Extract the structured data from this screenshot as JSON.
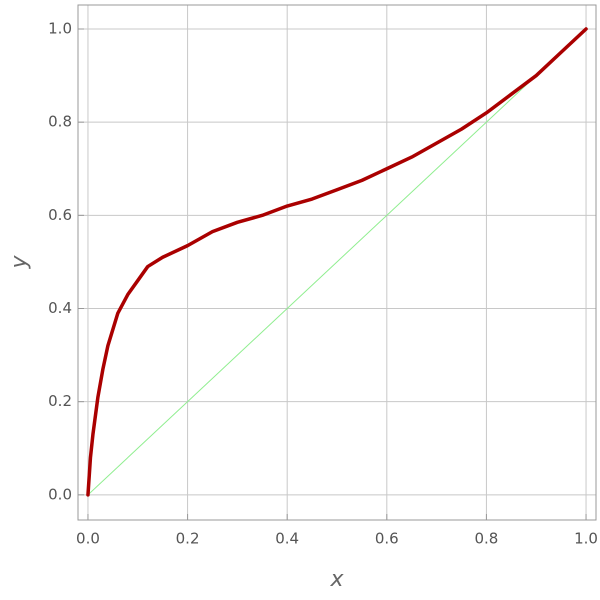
{
  "chart_data": {
    "type": "line",
    "x_label": "x",
    "y_label": "y",
    "series": [
      {
        "color": "#aa0000",
        "width": 3.5,
        "x": [
          0,
          0.005,
          0.01,
          0.02,
          0.03,
          0.04,
          0.06,
          0.08,
          0.1,
          0.12,
          0.15,
          0.2,
          0.25,
          0.3,
          0.35,
          0.4,
          0.45,
          0.5,
          0.55,
          0.6,
          0.65,
          0.7,
          0.75,
          0.8,
          0.85,
          0.9,
          0.95,
          1
        ],
        "values": [
          0,
          0.08,
          0.13,
          0.21,
          0.27,
          0.32,
          0.39,
          0.43,
          0.46,
          0.49,
          0.51,
          0.535,
          0.565,
          0.585,
          0.6,
          0.62,
          0.635,
          0.655,
          0.675,
          0.7,
          0.725,
          0.755,
          0.785,
          0.82,
          0.86,
          0.9,
          0.95,
          1
        ]
      },
      {
        "color": "#90ee90",
        "width": 1,
        "x": [
          0,
          1
        ],
        "values": [
          0,
          1
        ]
      }
    ],
    "xlim": [
      -0.02,
      1.02
    ],
    "ylim": [
      -0.054,
      1.0515
    ],
    "xticks": [
      {
        "value": 0,
        "label": "0.0"
      },
      0.2,
      0.4,
      0.6,
      0.8,
      {
        "value": 1,
        "label": "1.0"
      }
    ],
    "yticks": [
      {
        "value": 0,
        "label": "0.0"
      },
      0.2,
      0.4,
      0.6,
      0.8,
      {
        "value": 1,
        "label": "1.0"
      }
    ],
    "grid": true
  }
}
